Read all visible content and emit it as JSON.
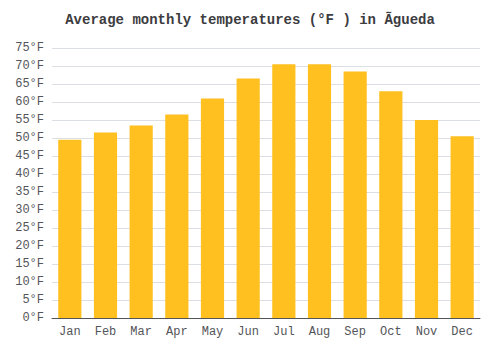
{
  "chart_data": {
    "type": "bar",
    "title": "Average monthly temperatures (°F ) in Ãgueda",
    "categories": [
      "Jan",
      "Feb",
      "Mar",
      "Apr",
      "May",
      "Jun",
      "Jul",
      "Aug",
      "Sep",
      "Oct",
      "Nov",
      "Dec"
    ],
    "values": [
      49.5,
      51.5,
      53.5,
      56.5,
      61.0,
      66.5,
      70.5,
      70.5,
      68.5,
      63.0,
      55.0,
      50.5
    ],
    "color": "#FFC020",
    "ylim": [
      0,
      75
    ],
    "yticks": [
      {
        "value": 0,
        "label": "0°F"
      },
      {
        "value": 5,
        "label": "5°F"
      },
      {
        "value": 10,
        "label": "10°F"
      },
      {
        "value": 15,
        "label": "15°F"
      },
      {
        "value": 20,
        "label": "20°F"
      },
      {
        "value": 25,
        "label": "25°F"
      },
      {
        "value": 30,
        "label": "30°F"
      },
      {
        "value": 35,
        "label": "35°F"
      },
      {
        "value": 40,
        "label": "40°F"
      },
      {
        "value": 45,
        "label": "45°F"
      },
      {
        "value": 50,
        "label": "50°F"
      },
      {
        "value": 55,
        "label": "55°F"
      },
      {
        "value": 60,
        "label": "60°F"
      },
      {
        "value": 65,
        "label": "65°F"
      },
      {
        "value": 70,
        "label": "70°F"
      },
      {
        "value": 75,
        "label": "75°F"
      }
    ],
    "grid": true
  }
}
